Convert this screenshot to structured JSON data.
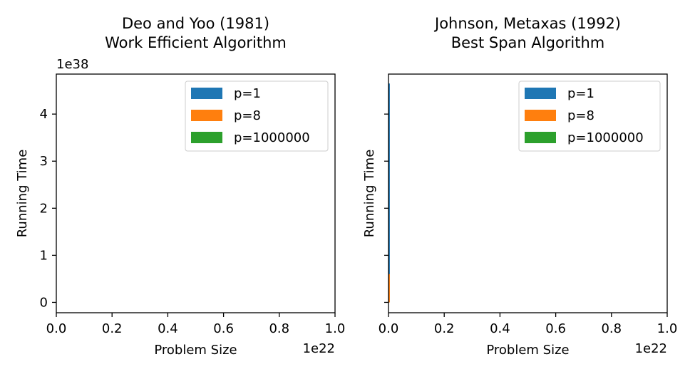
{
  "chart_data": [
    {
      "type": "bar",
      "title_lines": [
        "Deo and Yoo (1981)",
        "Work Efficient Algorithm"
      ],
      "xlabel": "Problem Size",
      "ylabel": "Running Time",
      "x_offset_label": "1e22",
      "y_offset_label": "1e38",
      "xlim": [
        0,
        1.0
      ],
      "ylim": [
        -0.22,
        4.85
      ],
      "x_ticks": [
        0.0,
        0.2,
        0.4,
        0.6,
        0.8,
        1.0
      ],
      "x_tick_labels": [
        "0.0",
        "0.2",
        "0.4",
        "0.6",
        "0.8",
        "1.0"
      ],
      "y_ticks": [
        0,
        1,
        2,
        3,
        4
      ],
      "y_tick_labels": [
        "0",
        "1",
        "2",
        "3",
        "4"
      ],
      "show_y_tick_labels": true,
      "show_y_offset": true,
      "legend_position": "upper right",
      "series": [
        {
          "name": "p=1",
          "color": "#1f77b4",
          "bars": []
        },
        {
          "name": "p=8",
          "color": "#ff7f0e",
          "bars": []
        },
        {
          "name": "p=1000000",
          "color": "#2ca02c",
          "bars": []
        }
      ]
    },
    {
      "type": "bar",
      "title_lines": [
        "Johnson, Metaxas (1992)",
        "Best Span Algorithm"
      ],
      "xlabel": "Problem Size",
      "ylabel": "Running Time",
      "x_offset_label": "1e22",
      "y_offset_label": "",
      "xlim": [
        0,
        1.0
      ],
      "ylim": [
        -0.22,
        4.85
      ],
      "x_ticks": [
        0.0,
        0.2,
        0.4,
        0.6,
        0.8,
        1.0
      ],
      "x_tick_labels": [
        "0.0",
        "0.2",
        "0.4",
        "0.6",
        "0.8",
        "1.0"
      ],
      "y_ticks": [
        0,
        1,
        2,
        3,
        4
      ],
      "y_tick_labels": [
        "",
        "",
        "",
        "",
        ""
      ],
      "show_y_tick_labels": false,
      "show_y_offset": false,
      "legend_position": "upper right",
      "series": [
        {
          "name": "p=1",
          "color": "#1f77b4",
          "bars": [
            {
              "x0": 0.0,
              "x1": 0.005,
              "height": 4.65
            }
          ]
        },
        {
          "name": "p=8",
          "color": "#ff7f0e",
          "bars": [
            {
              "x0": 0.0,
              "x1": 0.005,
              "height": 0.6
            }
          ]
        },
        {
          "name": "p=1000000",
          "color": "#2ca02c",
          "bars": []
        }
      ]
    }
  ]
}
